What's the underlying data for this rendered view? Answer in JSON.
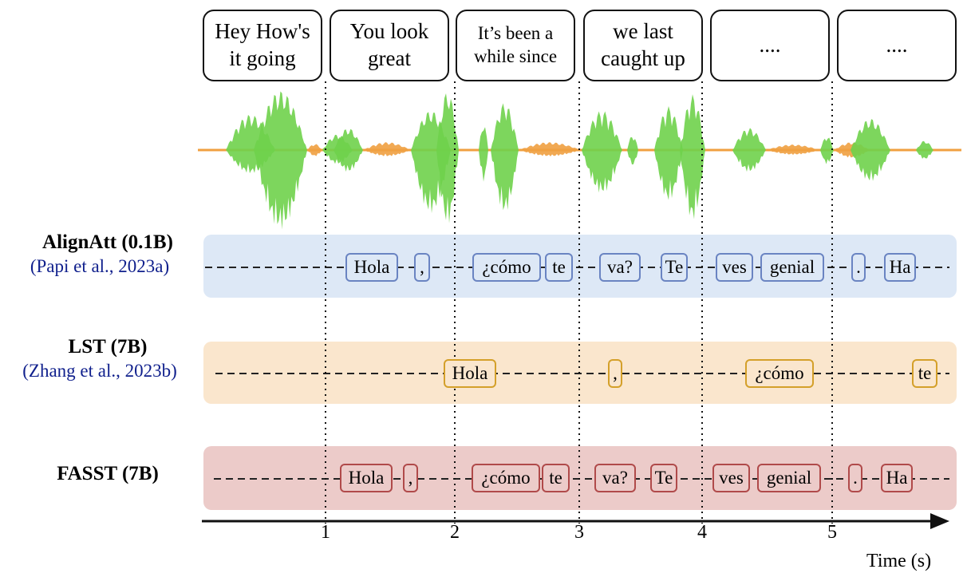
{
  "speech_boxes": [
    {
      "text": "Hey How's\nit going"
    },
    {
      "text": "You look\ngreat"
    },
    {
      "text": "It’s been a\nwhile since"
    },
    {
      "text": "we last\ncaught up"
    },
    {
      "text": "...."
    },
    {
      "text": "...."
    }
  ],
  "models": [
    {
      "name": "AlignAtt (0.1B)",
      "citation": "(Papi et al., 2023a)",
      "tokens": [
        "Hola",
        ",",
        "¿cómo",
        "te",
        "va?",
        "Te",
        "ves",
        "genial",
        ".",
        "Ha"
      ]
    },
    {
      "name": "LST (7B)",
      "citation": "(Zhang et al., 2023b)",
      "tokens": [
        "Hola",
        ",",
        "¿cómo",
        "te"
      ]
    },
    {
      "name": "FASST (7B)",
      "citation": "",
      "tokens": [
        "Hola",
        ",",
        "¿cómo",
        "te",
        "va?",
        "Te",
        "ves",
        "genial",
        ".",
        "Ha"
      ]
    }
  ],
  "time_axis": {
    "title": "Time (s)",
    "ticks": [
      "1",
      "2",
      "3",
      "4",
      "5"
    ]
  },
  "colors": {
    "align_band": "#dde8f6",
    "lst_band": "#fae6cd",
    "fasst_band": "#eccbc9",
    "waveform_speech": "#6fd24b",
    "waveform_silence": "#f0a040",
    "citation_text": "#0f1f8c"
  }
}
